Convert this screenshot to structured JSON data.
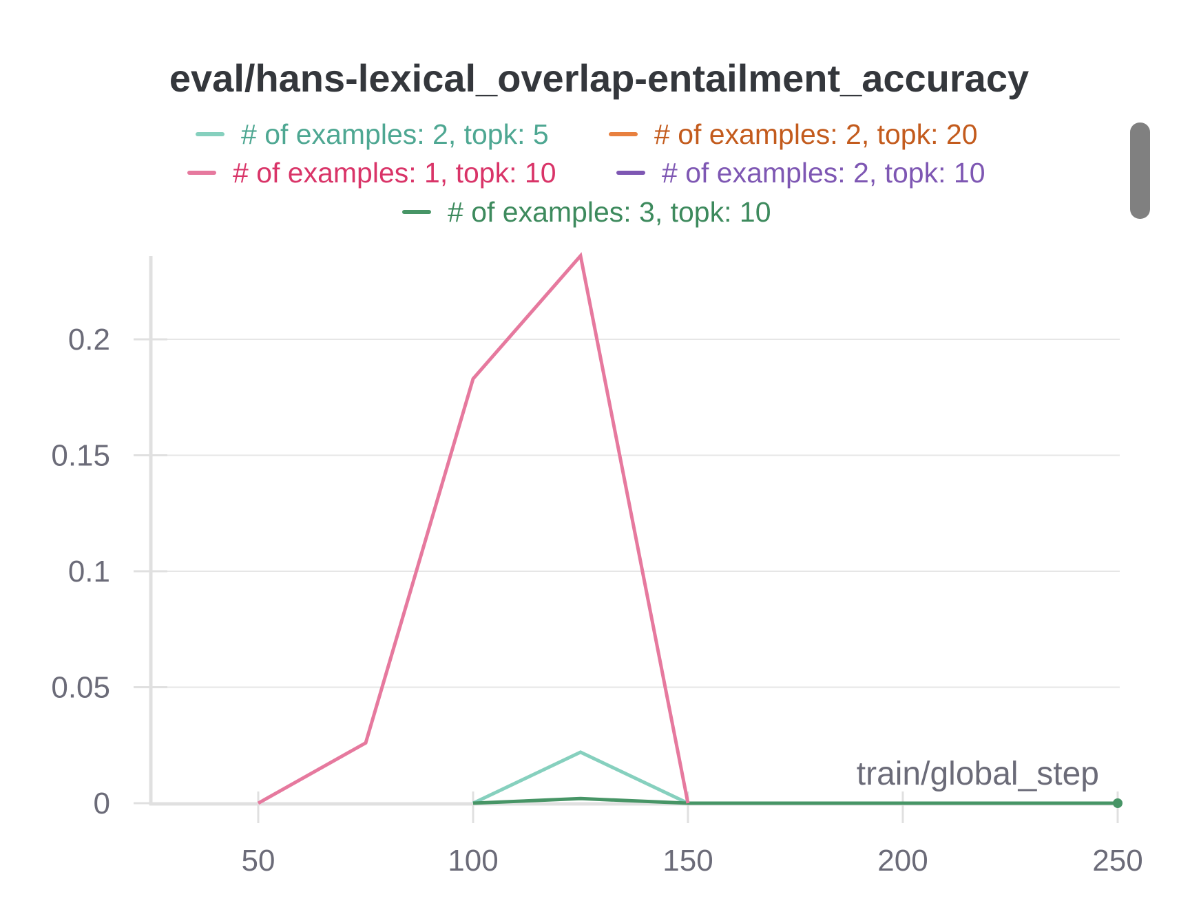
{
  "chart_data": {
    "type": "line",
    "title": "eval/hans-lexical_overlap-entailment_accuracy",
    "xlabel": "train/global_step",
    "ylabel": "",
    "xlim": [
      25,
      250
    ],
    "ylim": [
      0,
      0.236
    ],
    "xticks": [
      50,
      100,
      150,
      200,
      250
    ],
    "xtick_labels": [
      "50",
      "100",
      "150",
      "200",
      "250"
    ],
    "yticks": [
      0,
      0.05,
      0.1,
      0.15,
      0.2
    ],
    "ytick_labels": [
      "0",
      "0.05",
      "0.1",
      "0.15",
      "0.2"
    ],
    "grid": "horizontal",
    "legend_position": "top",
    "series": [
      {
        "name": "# of examples: 2, topk: 5",
        "color": "#86d0be",
        "text_color": "#4ea792",
        "x": [
          100,
          125,
          150
        ],
        "y": [
          0,
          0.022,
          0
        ]
      },
      {
        "name": "# of examples: 2, topk: 20",
        "color": "#e8803f",
        "text_color": "#c35b1d",
        "x": [],
        "y": []
      },
      {
        "name": "# of examples: 1, topk: 10",
        "color": "#e6799e",
        "text_color": "#d93468",
        "x": [
          50,
          75,
          100,
          125,
          150
        ],
        "y": [
          0,
          0.026,
          0.183,
          0.236,
          0
        ]
      },
      {
        "name": "# of examples: 2, topk: 10",
        "color": "#7e57b3",
        "text_color": "#7e57b3",
        "x": [],
        "y": []
      },
      {
        "name": "# of examples: 3, topk: 10",
        "color": "#479566",
        "text_color": "#3d8a5d",
        "x": [
          100,
          125,
          150,
          250
        ],
        "y": [
          0,
          0.002,
          0,
          0
        ]
      }
    ]
  },
  "ui": {
    "scrollbar": "vertical scrollbar thumb"
  }
}
